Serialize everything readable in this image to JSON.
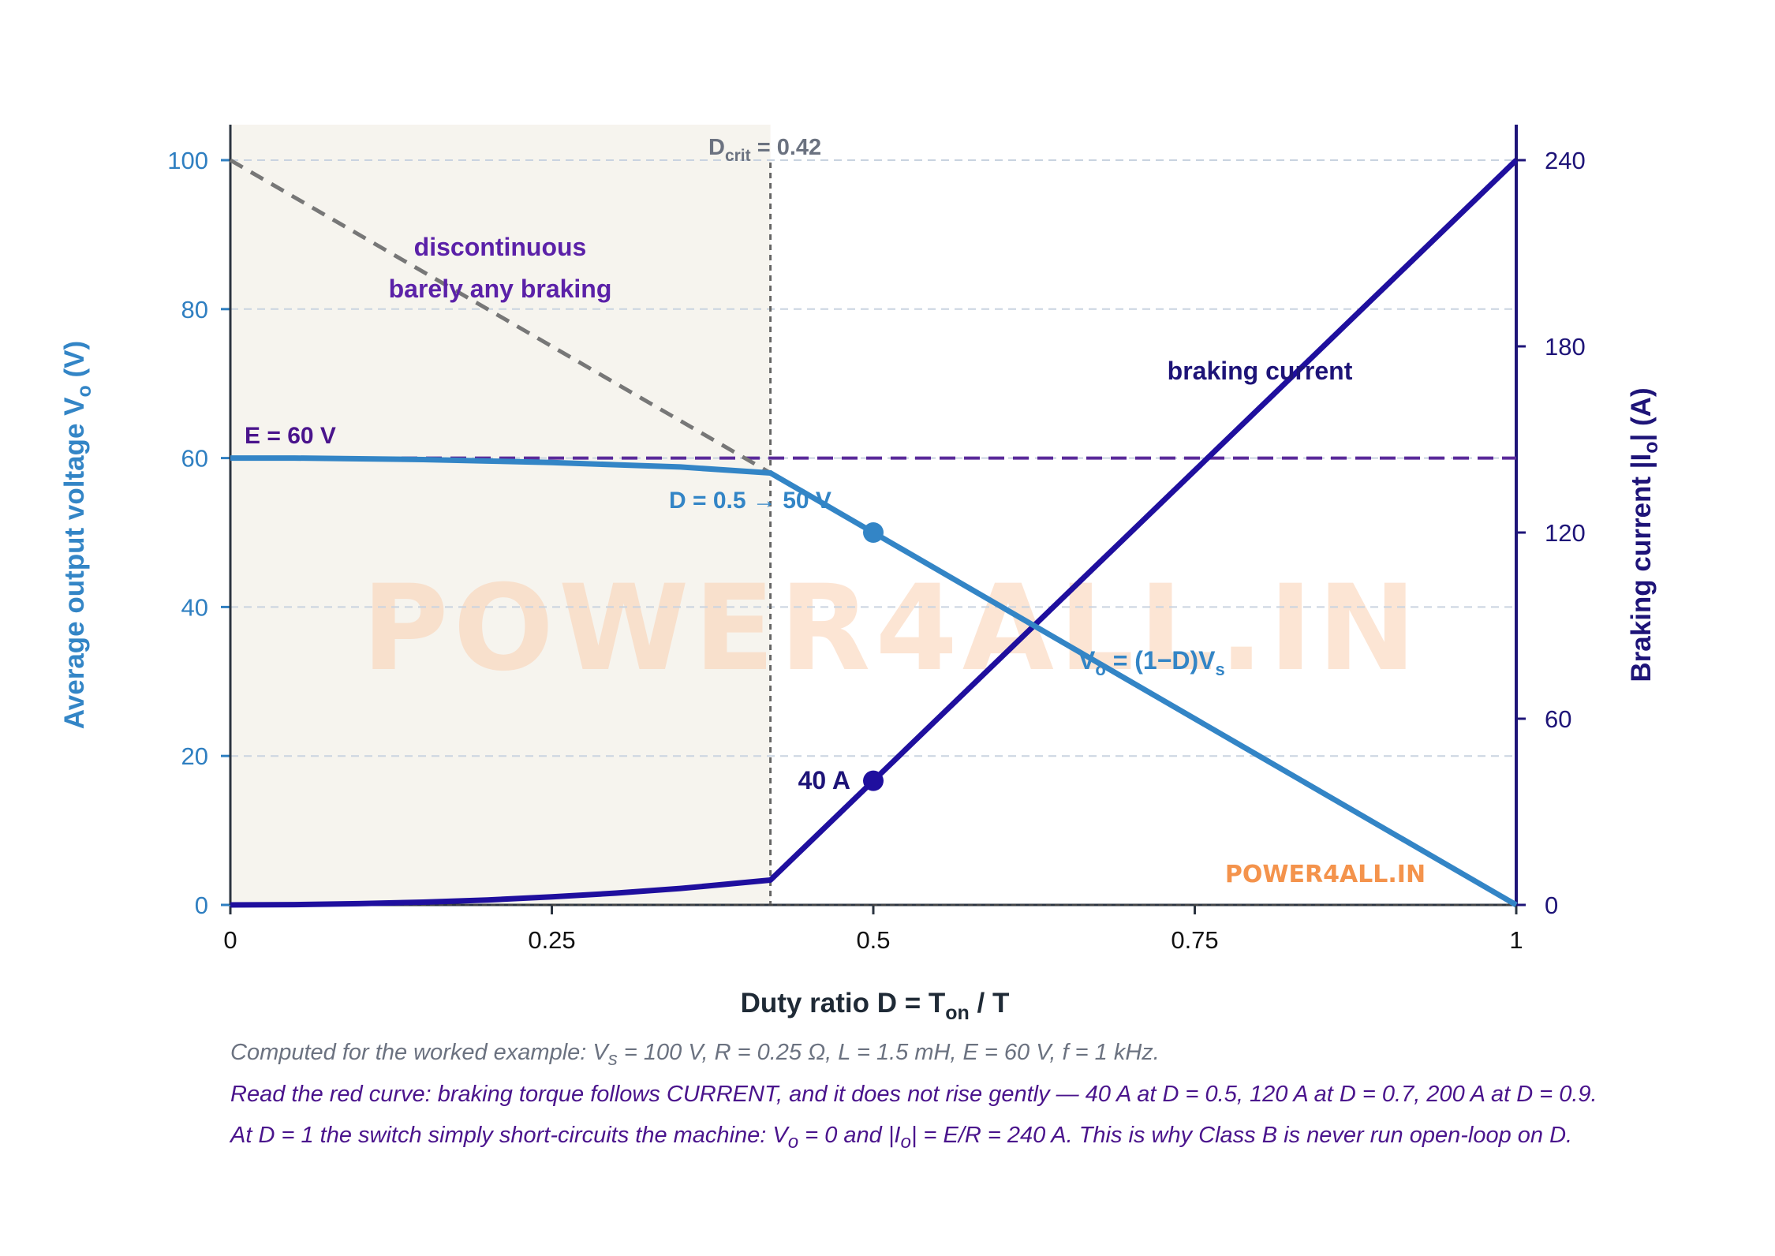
{
  "watermark": "POWER4ALL.IN",
  "logo_text": "POWER4ALL.IN",
  "colors": {
    "voltage": "#3385c6",
    "current": "#1f0f9e",
    "emf_line": "#5a2a9a",
    "ideal_line": "#777777",
    "region_label": "#5b21a8",
    "watermark": "#fbd0b2",
    "logo": "#f4934c",
    "shade": "#f6f4ee"
  },
  "chart_data": {
    "type": "line",
    "xlabel": "Duty ratio D = T",
    "xlabel_sub": "on",
    "xlabel_tail": " / T",
    "ylabel_left": "Average output voltage V",
    "ylabel_left_sub": "o",
    "ylabel_left_tail": " (V)",
    "ylabel_right": "Braking current |I",
    "ylabel_right_sub": "o",
    "ylabel_right_tail": "| (A)",
    "xlim": [
      0,
      1
    ],
    "ylim_left": [
      0,
      100
    ],
    "ylim_right": [
      0,
      240
    ],
    "x_ticks": [
      0,
      0.25,
      0.5,
      0.75,
      1
    ],
    "x_tick_labels": [
      "0",
      "0.25",
      "0.5",
      "0.75",
      "1"
    ],
    "y_left_ticks": [
      0,
      20,
      40,
      60,
      80,
      100
    ],
    "y_right_ticks": [
      0,
      60,
      120,
      180,
      240
    ],
    "grid": "horizontal dashed",
    "series": [
      {
        "name": "V_o = (1-D)V_s",
        "axis": "left",
        "x": [
          0,
          0.05,
          0.1,
          0.15,
          0.2,
          0.25,
          0.3,
          0.35,
          0.42,
          0.5,
          0.6,
          0.7,
          0.8,
          0.9,
          1.0
        ],
        "y": [
          60,
          60,
          59.9,
          59.8,
          59.6,
          59.4,
          59.1,
          58.8,
          58,
          50,
          40,
          30,
          20,
          10,
          0
        ]
      },
      {
        "name": "braking current",
        "axis": "right",
        "x": [
          0,
          0.05,
          0.1,
          0.15,
          0.2,
          0.25,
          0.3,
          0.35,
          0.42,
          0.5,
          0.6,
          0.7,
          0.8,
          0.9,
          1.0
        ],
        "y": [
          0,
          0.1,
          0.4,
          0.9,
          1.6,
          2.6,
          3.8,
          5.3,
          8,
          40,
          80,
          120,
          160,
          200,
          240
        ]
      },
      {
        "name": "ideal V_o (dashed)",
        "axis": "left",
        "x": [
          0,
          0.42
        ],
        "y": [
          100,
          58
        ]
      }
    ],
    "reference_lines": [
      {
        "type": "horizontal",
        "axis": "left",
        "y": 60,
        "label": "E = 60 V"
      },
      {
        "type": "vertical",
        "x": 0.42,
        "label_main": "D",
        "label_sub": "crit",
        "label_tail": " = 0.42"
      }
    ],
    "shaded_region": {
      "x": [
        0,
        0.42
      ]
    },
    "markers": [
      {
        "axis": "left",
        "x": 0.5,
        "y": 50,
        "label": "D = 0.5 → 50 V"
      },
      {
        "axis": "right",
        "x": 0.5,
        "y": 40,
        "label": "40 A"
      }
    ],
    "annotations": {
      "region_line1": "discontinuous",
      "region_line2": "barely any braking",
      "current_label": "braking current",
      "voltage_label_main": "V",
      "voltage_label_sub": "o",
      "voltage_label_tail": " = (1−D)V",
      "voltage_label_sub2": "s"
    }
  },
  "captions": {
    "line1": "Computed for the worked example: V",
    "line1_sub": "s",
    "line1_tail": " = 100 V, R = 0.25 Ω, L = 1.5 mH, E = 60 V, f = 1 kHz.",
    "line2": "Read the red curve: braking torque follows CURRENT, and it does not rise gently — 40 A at D = 0.5, 120 A at D = 0.7, 200 A at D = 0.9.",
    "line3": "At D = 1 the switch simply short-circuits the machine: V",
    "line3_sub": "o",
    "line3_mid": " = 0 and |I",
    "line3_sub2": "o",
    "line3_tail": "| = E/R = 240 A. This is why Class B is never run open-loop on D."
  }
}
